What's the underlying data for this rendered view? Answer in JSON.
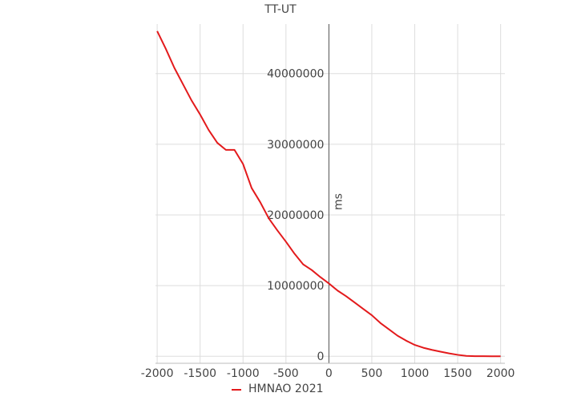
{
  "chart_data": {
    "type": "line",
    "title": "TT-UT",
    "xlabel": "",
    "ylabel": "ms",
    "xlim": [
      -2020,
      2050
    ],
    "ylim": [
      -1000000,
      47000000
    ],
    "xticks": [
      -2000,
      -1500,
      -1000,
      -500,
      0,
      500,
      1000,
      1500,
      2000
    ],
    "xtick_labels": [
      "-2000",
      "-1500",
      "-1000",
      "-500",
      "0",
      "500",
      "1000",
      "1500",
      "2000"
    ],
    "yticks": [
      0,
      10000000,
      20000000,
      30000000,
      40000000
    ],
    "ytick_labels": [
      "0",
      "10000000",
      "20000000",
      "30000000",
      "40000000"
    ],
    "grid": true,
    "legend_position": "bottom-center",
    "series": [
      {
        "name": "HMNAO 2021",
        "color": "#e31a1c",
        "x": [
          -2000,
          -1900,
          -1800,
          -1700,
          -1600,
          -1500,
          -1400,
          -1300,
          -1200,
          -1100,
          -1000,
          -900,
          -800,
          -700,
          -600,
          -500,
          -400,
          -300,
          -200,
          -100,
          0,
          100,
          200,
          300,
          400,
          500,
          600,
          700,
          800,
          900,
          1000,
          1100,
          1200,
          1300,
          1400,
          1500,
          1600,
          1700,
          1800,
          1900,
          2000
        ],
        "y": [
          46000000,
          43500000,
          40800000,
          38500000,
          36200000,
          34200000,
          32000000,
          30200000,
          29200000,
          29200000,
          27200000,
          23800000,
          21800000,
          19500000,
          17800000,
          16200000,
          14500000,
          13000000,
          12200000,
          11200000,
          10300000,
          9300000,
          8500000,
          7600000,
          6700000,
          5800000,
          4700000,
          3800000,
          2900000,
          2200000,
          1600000,
          1200000,
          900000,
          650000,
          400000,
          200000,
          50000,
          10000,
          5000,
          0,
          0
        ]
      }
    ]
  }
}
